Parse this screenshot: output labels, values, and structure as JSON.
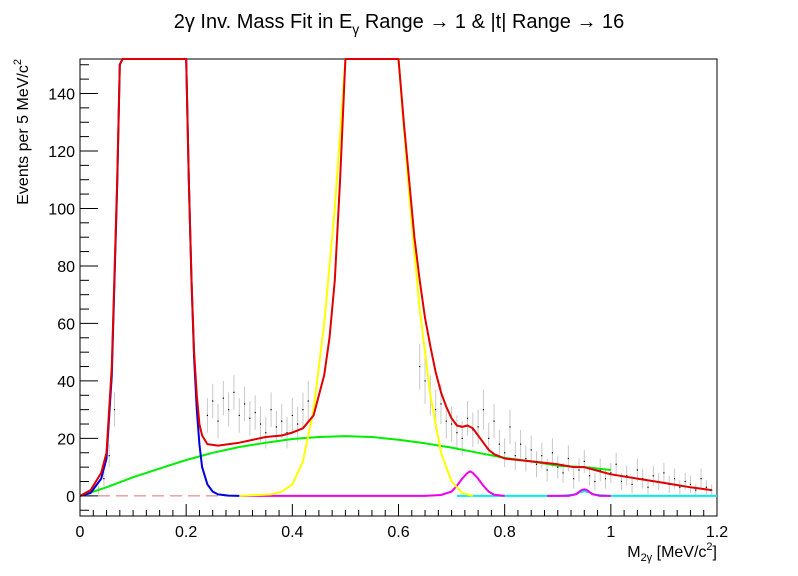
{
  "chart_data": {
    "type": "line",
    "title": {
      "pre": "2γ Inv. Mass Fit in E",
      "sub": "γ",
      "post": " Range → 1 & |t| Range → 16"
    },
    "xlabel": {
      "base": "M",
      "sub": "2γ",
      "unit": " [MeV/c",
      "sup": "2",
      "close": "]"
    },
    "ylabel": {
      "text": "Events per 5 MeV/c",
      "sup": "2"
    },
    "xlim": [
      0,
      1.2
    ],
    "ylim": [
      -7,
      152
    ],
    "xticks": [
      "0",
      "0.2",
      "0.4",
      "0.6",
      "0.8",
      "1",
      "1.2"
    ],
    "yticks": [
      "0",
      "20",
      "40",
      "60",
      "80",
      "100",
      "120",
      "140"
    ],
    "colors": {
      "total": "#e00000",
      "pi0": "#0000dd",
      "eta": "#ffff00",
      "background": "#00ee00",
      "omega": "#ee00ee",
      "etaprime": "#00eeee",
      "data": "#000000",
      "errors": "#c8c8c8",
      "zero_line": "#e07070"
    },
    "series": [
      {
        "key": "total",
        "x": [
          0.0,
          0.02,
          0.04,
          0.05,
          0.06,
          0.07,
          0.075,
          0.08,
          0.2,
          0.205,
          0.21,
          0.215,
          0.22,
          0.225,
          0.23,
          0.24,
          0.26,
          0.3,
          0.35,
          0.38,
          0.4,
          0.42,
          0.44,
          0.46,
          0.47,
          0.48,
          0.49,
          0.5,
          0.6,
          0.61,
          0.62,
          0.63,
          0.64,
          0.65,
          0.66,
          0.67,
          0.68,
          0.69,
          0.7,
          0.71,
          0.72,
          0.73,
          0.74,
          0.75,
          0.76,
          0.77,
          0.78,
          0.8,
          0.85,
          0.9,
          0.93,
          0.95,
          0.97,
          1.0,
          1.05,
          1.1,
          1.15,
          1.19
        ],
        "y": [
          0,
          2,
          8,
          15,
          45,
          110,
          150,
          152,
          152,
          110,
          75,
          50,
          35,
          25,
          21,
          18,
          17.5,
          18.5,
          20.5,
          21,
          22,
          23.5,
          28,
          42,
          55,
          75,
          110,
          152,
          152,
          130,
          110,
          90,
          75,
          62,
          52,
          43,
          36,
          31,
          27,
          24.5,
          24,
          24.5,
          23.5,
          21,
          18.5,
          16,
          14.5,
          13,
          12,
          11,
          10,
          10,
          9,
          7.5,
          6,
          4.5,
          3,
          2
        ]
      },
      {
        "key": "pi0",
        "x": [
          0.0,
          0.02,
          0.04,
          0.05,
          0.06,
          0.07,
          0.075,
          0.08,
          0.2,
          0.205,
          0.21,
          0.215,
          0.22,
          0.225,
          0.23,
          0.24,
          0.25,
          0.26,
          0.28,
          0.3
        ],
        "y": [
          0,
          1,
          6,
          13,
          42,
          108,
          150,
          152,
          152,
          110,
          75,
          48,
          30,
          18,
          10,
          4,
          1.5,
          0.5,
          0.1,
          0
        ]
      },
      {
        "key": "eta",
        "x": [
          0.3,
          0.36,
          0.38,
          0.4,
          0.42,
          0.44,
          0.46,
          0.48,
          0.5,
          0.6,
          0.62,
          0.64,
          0.66,
          0.68,
          0.7,
          0.72,
          0.74
        ],
        "y": [
          0,
          0.5,
          1.5,
          4,
          12,
          30,
          60,
          100,
          152,
          152,
          105,
          65,
          35,
          15,
          5,
          1,
          0
        ]
      },
      {
        "key": "background",
        "x": [
          0.0,
          0.05,
          0.1,
          0.15,
          0.2,
          0.25,
          0.3,
          0.35,
          0.4,
          0.45,
          0.5,
          0.55,
          0.6,
          0.65,
          0.7,
          0.75,
          0.8,
          0.85,
          0.9,
          0.95,
          1.0
        ],
        "y": [
          0,
          3,
          6.5,
          9.5,
          12.5,
          15,
          17,
          18.5,
          19.8,
          20.5,
          20.8,
          20.5,
          19.5,
          18.3,
          16.8,
          15,
          13.2,
          12,
          10.5,
          10,
          9
        ]
      },
      {
        "key": "omega",
        "x": [
          0.3,
          0.65,
          0.68,
          0.7,
          0.71,
          0.72,
          0.73,
          0.735,
          0.74,
          0.75,
          0.76,
          0.77,
          0.78,
          0.8
        ],
        "y": [
          0,
          0,
          0.3,
          1.5,
          3.5,
          6,
          8,
          8.5,
          8,
          6,
          3.5,
          1.5,
          0.4,
          0
        ]
      },
      {
        "key": "omega",
        "x": [
          0.88,
          0.92,
          0.935,
          0.94,
          0.945,
          0.95,
          0.955,
          0.96,
          0.965,
          0.98,
          1.0
        ],
        "y": [
          0,
          0,
          0.6,
          1.3,
          2.0,
          2.3,
          2.0,
          1.3,
          0.6,
          0,
          0
        ]
      },
      {
        "key": "etaprime",
        "x": [
          0.71,
          0.9,
          0.93,
          0.94,
          0.95,
          0.96,
          0.97,
          1.0,
          1.2
        ],
        "y": [
          0,
          0,
          0.4,
          1.2,
          1.6,
          1.2,
          0.4,
          0,
          0
        ]
      }
    ],
    "points": [
      [
        0.035,
        2,
        1.5
      ],
      [
        0.045,
        6,
        2.5
      ],
      [
        0.055,
        14,
        4
      ],
      [
        0.065,
        30,
        6
      ],
      [
        0.24,
        28,
        6
      ],
      [
        0.25,
        33,
        6
      ],
      [
        0.26,
        26,
        6
      ],
      [
        0.27,
        34,
        6
      ],
      [
        0.28,
        30,
        6
      ],
      [
        0.29,
        36,
        6
      ],
      [
        0.3,
        28,
        6
      ],
      [
        0.31,
        32,
        6
      ],
      [
        0.32,
        27,
        6
      ],
      [
        0.33,
        29,
        6
      ],
      [
        0.34,
        25,
        6
      ],
      [
        0.35,
        22,
        5.5
      ],
      [
        0.36,
        30,
        6
      ],
      [
        0.37,
        24,
        5.5
      ],
      [
        0.38,
        26,
        6
      ],
      [
        0.39,
        22,
        5.5
      ],
      [
        0.4,
        28,
        6
      ],
      [
        0.41,
        25,
        6
      ],
      [
        0.42,
        30,
        6
      ],
      [
        0.43,
        33,
        7
      ],
      [
        0.64,
        45,
        8
      ],
      [
        0.65,
        40,
        8
      ],
      [
        0.66,
        35,
        7
      ],
      [
        0.67,
        30,
        7
      ],
      [
        0.68,
        32,
        7
      ],
      [
        0.69,
        26,
        6
      ],
      [
        0.7,
        25,
        6
      ],
      [
        0.71,
        22,
        6
      ],
      [
        0.72,
        20,
        6
      ],
      [
        0.73,
        27,
        6
      ],
      [
        0.74,
        23,
        6
      ],
      [
        0.75,
        24,
        6
      ],
      [
        0.76,
        30,
        7
      ],
      [
        0.77,
        20,
        5.5
      ],
      [
        0.78,
        26,
        6
      ],
      [
        0.79,
        18,
        5
      ],
      [
        0.8,
        15,
        5
      ],
      [
        0.81,
        24,
        6
      ],
      [
        0.82,
        14,
        5
      ],
      [
        0.83,
        18,
        5
      ],
      [
        0.84,
        13,
        4.5
      ],
      [
        0.85,
        16,
        5
      ],
      [
        0.86,
        11,
        4.5
      ],
      [
        0.87,
        14,
        4.5
      ],
      [
        0.88,
        9,
        4
      ],
      [
        0.89,
        15,
        5
      ],
      [
        0.9,
        10,
        4
      ],
      [
        0.91,
        8,
        3.5
      ],
      [
        0.92,
        13,
        4.5
      ],
      [
        0.93,
        6,
        3.5
      ],
      [
        0.94,
        9,
        4
      ],
      [
        0.95,
        12,
        4
      ],
      [
        0.96,
        7,
        3.5
      ],
      [
        0.97,
        5,
        3
      ],
      [
        0.98,
        9,
        4
      ],
      [
        0.99,
        6,
        3.5
      ],
      [
        1.0,
        8,
        3.5
      ],
      [
        1.01,
        11,
        4
      ],
      [
        1.02,
        5,
        3
      ],
      [
        1.03,
        7,
        3.5
      ],
      [
        1.04,
        4,
        3
      ],
      [
        1.05,
        9,
        4
      ],
      [
        1.06,
        6,
        3.5
      ],
      [
        1.07,
        3,
        2.5
      ],
      [
        1.08,
        7,
        3.5
      ],
      [
        1.09,
        5,
        3
      ],
      [
        1.1,
        8,
        3.5
      ],
      [
        1.11,
        4,
        3
      ],
      [
        1.12,
        6,
        3.5
      ],
      [
        1.13,
        3,
        2.5
      ],
      [
        1.14,
        5,
        3
      ],
      [
        1.15,
        4,
        3
      ],
      [
        1.16,
        2,
        2
      ],
      [
        1.17,
        6,
        3.5
      ],
      [
        1.18,
        3,
        2.5
      ],
      [
        1.19,
        2,
        2
      ]
    ]
  }
}
